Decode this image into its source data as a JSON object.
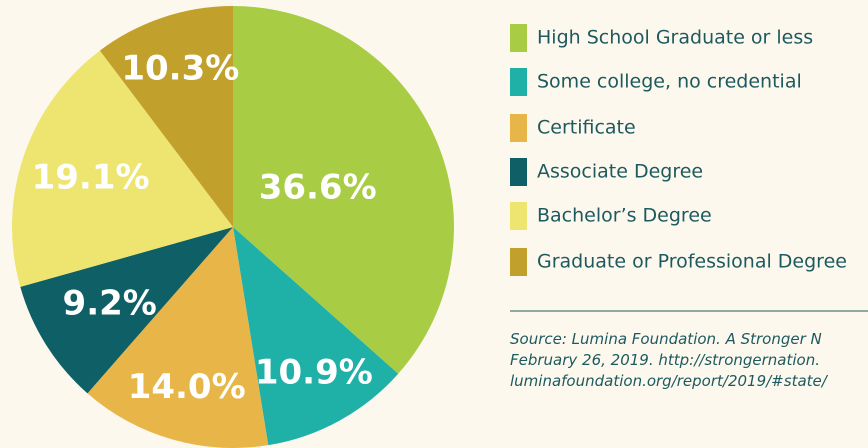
{
  "chart_data": {
    "type": "pie",
    "categories": [
      "High School Graduate or less",
      "Some college, no credential",
      "Certificate",
      "Associate Degree",
      "Bachelor’s Degree",
      "Graduate or Professional Degree"
    ],
    "values": [
      36.6,
      10.9,
      14.0,
      9.2,
      19.1,
      10.3
    ],
    "value_labels": [
      "36.6%",
      "10.9%",
      "14.0%",
      "9.2%",
      "19.1%",
      "10.3%"
    ],
    "colors": [
      "#a8cd45",
      "#1fb0a8",
      "#e8b548",
      "#0f5f66",
      "#ede56f",
      "#c2a02c"
    ],
    "legend": "right",
    "source": [
      "Source: Lumina Foundation. A Stronger N",
      "February 26, 2019. http://strongernation.",
      "luminafoundation.org/report/2019/#state/"
    ]
  }
}
